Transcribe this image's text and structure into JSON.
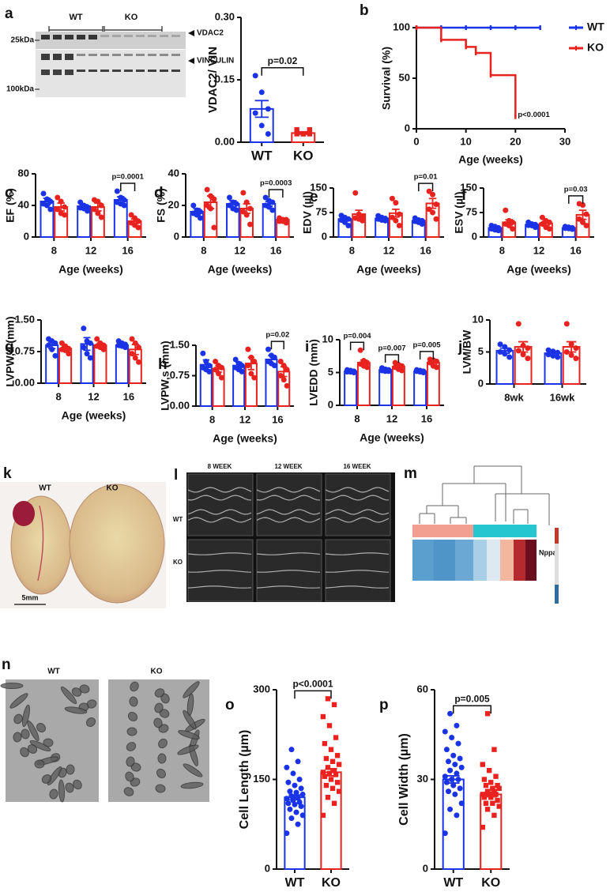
{
  "chart_data": [
    {
      "type": "bar",
      "ylabel": "VDAC2/ VIN",
      "categories": [
        "WT",
        "KO"
      ],
      "ylim": [
        0,
        0.3
      ],
      "yticks": [
        {
          "value": 0,
          "label": "0.00"
        },
        {
          "value": 0.15,
          "label": "0.15"
        },
        {
          "value": 0.3,
          "label": "0.30"
        }
      ],
      "values": [
        0.08,
        0.022
      ],
      "errors": [
        0.02,
        0.003
      ],
      "colors": [
        "#1a33e6",
        "#e8231f"
      ],
      "markers": [
        "circle",
        "square"
      ],
      "points": [
        [
          0.16,
          0.12,
          0.08,
          0.07,
          0.04,
          0.02
        ],
        [
          0.03,
          0.02,
          0.02,
          0.02,
          0.02,
          0.03
        ]
      ],
      "p_value": "p=0.02"
    },
    {
      "type": "line",
      "panel": "b",
      "step": true,
      "ylabel": "Survival (%)",
      "xlabel": "Age (weeks)",
      "xlim": [
        0,
        30
      ],
      "xticks": [
        0,
        10,
        20,
        30
      ],
      "ylim": [
        0,
        100
      ],
      "yticks": [
        0,
        50,
        100
      ],
      "legend": "right",
      "annotation": "p<0.0001",
      "series": [
        {
          "name": "WT",
          "color": "#1a33e6",
          "x": [
            0,
            5,
            10,
            15,
            20,
            25
          ],
          "values": [
            100,
            100,
            100,
            100,
            100,
            100
          ]
        },
        {
          "name": "KO",
          "color": "#e8231f",
          "x": [
            0,
            5,
            10,
            12,
            15,
            20
          ],
          "values": [
            100,
            88,
            81,
            75,
            53,
            12
          ]
        }
      ]
    },
    {
      "type": "bar",
      "panel": "c",
      "ylabel": "EF (%)",
      "xlabel": "Age (weeks)",
      "categories": [
        "8",
        "12",
        "16"
      ],
      "ylim": [
        0,
        80
      ],
      "yticks": [
        0,
        40,
        80
      ],
      "series": [
        {
          "color": "#1a33e6",
          "values": [
            45,
            39,
            47
          ],
          "errors": [
            4,
            2,
            4
          ],
          "points": [
            [
              55,
              48,
              45,
              42,
              40,
              35
            ],
            [
              44,
              40,
              38,
              37,
              36,
              33
            ],
            [
              58,
              50,
              47,
              44,
              42,
              40
            ]
          ]
        },
        {
          "color": "#e8231f",
          "values": [
            38,
            38,
            20
          ],
          "errors": [
            5,
            5,
            3
          ],
          "points": [
            [
              50,
              45,
              38,
              35,
              30,
              28
            ],
            [
              47,
              45,
              40,
              35,
              30,
              25
            ],
            [
              28,
              24,
              20,
              18,
              15,
              12
            ]
          ]
        }
      ],
      "p_values": [
        null,
        null,
        "p=0.0001"
      ]
    },
    {
      "type": "bar",
      "panel": "d",
      "ylabel": "FS (%)",
      "xlabel": "Age (weeks)",
      "categories": [
        "8",
        "12",
        "16"
      ],
      "ylim": [
        0,
        40
      ],
      "yticks": [
        0,
        20,
        40
      ],
      "series": [
        {
          "color": "#1a33e6",
          "values": [
            16,
            21,
            21
          ],
          "errors": [
            2,
            2,
            1.5
          ],
          "points": [
            [
              20,
              17,
              16,
              15,
              14,
              12
            ],
            [
              25,
              22,
              21,
              20,
              18,
              17
            ],
            [
              25,
              23,
              22,
              20,
              19,
              17
            ]
          ]
        },
        {
          "color": "#e8231f",
          "values": [
            22,
            18,
            11
          ],
          "errors": [
            4,
            3,
            1
          ],
          "points": [
            [
              30,
              26,
              24,
              20,
              18,
              6
            ],
            [
              28,
              22,
              18,
              16,
              14,
              8
            ],
            [
              12,
              11,
              11,
              10,
              10,
              9
            ]
          ]
        }
      ],
      "p_values": [
        null,
        null,
        "p=0.0003"
      ]
    },
    {
      "type": "bar",
      "panel": "e",
      "ylabel": "EDV (µl)",
      "xlabel": "Age (weeks)",
      "categories": [
        "8",
        "12",
        "16"
      ],
      "ylim": [
        0,
        150
      ],
      "yticks": [
        0,
        75,
        150
      ],
      "series": [
        {
          "color": "#1a33e6",
          "values": [
            55,
            57,
            50
          ],
          "errors": [
            6,
            4,
            4
          ],
          "points": [
            [
              66,
              60,
              55,
              52,
              45,
              35
            ],
            [
              65,
              60,
              57,
              55,
              52,
              50
            ],
            [
              58,
              52,
              50,
              48,
              45,
              40
            ]
          ]
        },
        {
          "color": "#e8231f",
          "values": [
            70,
            73,
            103
          ],
          "errors": [
            12,
            12,
            15
          ],
          "points": [
            [
              135,
              70,
              62,
              58,
              55,
              50
            ],
            [
              118,
              105,
              70,
              60,
              50,
              35
            ],
            [
              140,
              130,
              100,
              85,
              75,
              55
            ]
          ]
        }
      ],
      "p_values": [
        null,
        null,
        "p=0.01"
      ]
    },
    {
      "type": "bar",
      "panel": "f",
      "ylabel": "ESV (µl)",
      "xlabel": "Age (weeks)",
      "categories": [
        "8",
        "12",
        "16"
      ],
      "ylim": [
        0,
        150
      ],
      "yticks": [
        0,
        75,
        150
      ],
      "series": [
        {
          "color": "#1a33e6",
          "values": [
            28,
            38,
            28
          ],
          "errors": [
            4,
            3,
            2
          ],
          "points": [
            [
              35,
              32,
              28,
              25,
              22,
              20
            ],
            [
              45,
              40,
              38,
              36,
              35,
              30
            ],
            [
              32,
              30,
              28,
              27,
              26,
              24
            ]
          ]
        },
        {
          "color": "#e8231f",
          "values": [
            45,
            42,
            68
          ],
          "errors": [
            8,
            6,
            14
          ],
          "points": [
            [
              82,
              50,
              45,
              40,
              35,
              25
            ],
            [
              60,
              50,
              45,
              40,
              30,
              25
            ],
            [
              102,
              98,
              70,
              55,
              45,
              35
            ]
          ]
        }
      ],
      "p_values": [
        null,
        null,
        "p=0.03"
      ]
    },
    {
      "type": "bar",
      "panel": "g",
      "ylabel": "LVPW,d  (mm)",
      "xlabel": "Age (weeks)",
      "categories": [
        "8",
        "12",
        "16"
      ],
      "ylim": [
        0,
        1.5
      ],
      "yticks": [
        {
          "value": 0,
          "label": "0.00"
        },
        {
          "value": 0.75,
          "label": "0.75"
        },
        {
          "value": 1.5,
          "label": "1.50"
        }
      ],
      "series": [
        {
          "color": "#1a33e6",
          "values": [
            0.9,
            0.93,
            0.9
          ],
          "errors": [
            0.08,
            0.15,
            0.05
          ],
          "points": [
            [
              1.05,
              1.0,
              0.95,
              0.9,
              0.8,
              0.65
            ],
            [
              1.3,
              1.0,
              0.95,
              0.85,
              0.7,
              0.6
            ],
            [
              1.0,
              0.95,
              0.92,
              0.9,
              0.88,
              0.85
            ]
          ]
        },
        {
          "color": "#e8231f",
          "values": [
            0.82,
            0.9,
            0.8
          ],
          "errors": [
            0.05,
            0.05,
            0.12
          ],
          "points": [
            [
              0.95,
              0.88,
              0.82,
              0.8,
              0.78,
              0.7
            ],
            [
              1.05,
              0.95,
              0.9,
              0.88,
              0.85,
              0.8
            ],
            [
              1.05,
              0.95,
              0.85,
              0.7,
              0.6,
              0.5
            ]
          ]
        }
      ]
    },
    {
      "type": "bar",
      "panel": "h",
      "ylabel": "LVPW,s  (mm)",
      "xlabel": "Age (weeks)",
      "categories": [
        "8",
        "12",
        "16"
      ],
      "ylim": [
        0,
        1.5
      ],
      "yticks": [
        {
          "value": 0,
          "label": "0.00"
        },
        {
          "value": 0.75,
          "label": "0.75"
        },
        {
          "value": 1.5,
          "label": "1.50"
        }
      ],
      "series": [
        {
          "color": "#1a33e6",
          "values": [
            1.02,
            1.0,
            1.15
          ],
          "errors": [
            0.12,
            0.08,
            0.1
          ],
          "points": [
            [
              1.3,
              1.1,
              1.0,
              0.95,
              0.9,
              0.85
            ],
            [
              1.15,
              1.05,
              1.0,
              0.95,
              0.9,
              0.85
            ],
            [
              1.4,
              1.25,
              1.2,
              1.1,
              1.05,
              1.0
            ]
          ]
        },
        {
          "color": "#e8231f",
          "values": [
            0.92,
            1.05,
            0.85
          ],
          "errors": [
            0.08,
            0.15,
            0.12
          ],
          "points": [
            [
              1.1,
              1.0,
              0.95,
              0.9,
              0.8,
              0.7
            ],
            [
              1.4,
              1.2,
              1.1,
              1.0,
              0.8,
              0.7
            ],
            [
              1.1,
              1.0,
              0.9,
              0.75,
              0.65,
              0.5
            ]
          ]
        }
      ],
      "p_values": [
        null,
        null,
        "p=0.02"
      ]
    },
    {
      "type": "bar",
      "panel": "i",
      "ylabel": "LVEDD (mm)",
      "xlabel": "Age (weeks)",
      "categories": [
        "8",
        "12",
        "16"
      ],
      "ylim": [
        0,
        10
      ],
      "yticks": [
        0,
        5,
        10
      ],
      "series": [
        {
          "color": "#1a33e6",
          "values": [
            5.2,
            5.4,
            5.2
          ],
          "errors": [
            0.1,
            0.15,
            0.1
          ],
          "points": [
            [
              5.4,
              5.3,
              5.2,
              5.1,
              5.1,
              5.0
            ],
            [
              5.7,
              5.5,
              5.4,
              5.3,
              5.2,
              5.2
            ],
            [
              5.4,
              5.3,
              5.2,
              5.2,
              5.1,
              5.0
            ]
          ]
        },
        {
          "color": "#e8231f",
          "values": [
            6.5,
            5.9,
            6.5
          ],
          "errors": [
            0.4,
            0.3,
            0.3
          ],
          "points": [
            [
              8.4,
              6.8,
              6.5,
              6.3,
              6.0,
              5.8
            ],
            [
              6.5,
              6.2,
              6.0,
              5.8,
              5.5,
              5.3
            ],
            [
              7.0,
              6.9,
              6.7,
              6.5,
              6.0,
              5.8
            ]
          ]
        }
      ],
      "p_values": [
        "p=0.004",
        "p=0.007",
        "p=0.005"
      ]
    },
    {
      "type": "bar",
      "panel": "j",
      "ylabel": "LVM/BW",
      "categories": [
        "8wk",
        "16wk"
      ],
      "ylim": [
        0,
        10
      ],
      "yticks": [
        0,
        5,
        10
      ],
      "series": [
        {
          "color": "#1a33e6",
          "values": [
            5.2,
            4.8
          ],
          "errors": [
            0.4,
            0.3
          ],
          "points": [
            [
              6.2,
              5.8,
              5.3,
              5.0,
              4.7,
              4.2
            ],
            [
              5.3,
              5.1,
              4.9,
              4.6,
              4.4,
              4.2
            ]
          ]
        },
        {
          "color": "#e8231f",
          "values": [
            5.8,
            5.8
          ],
          "errors": [
            0.8,
            0.8
          ],
          "points": [
            [
              9.4,
              6.0,
              5.6,
              5.2,
              4.6,
              4.0
            ],
            [
              9.4,
              6.2,
              5.6,
              5.0,
              4.5,
              4.0
            ]
          ]
        }
      ]
    },
    {
      "type": "bar",
      "panel": "o",
      "ylabel": "Cell Length (µm)",
      "categories": [
        "WT",
        "KO"
      ],
      "ylim": [
        0,
        300
      ],
      "yticks": [
        0,
        150,
        300
      ],
      "values": [
        120,
        162
      ],
      "errors": [
        4,
        6
      ],
      "colors": [
        "#1a33e6",
        "#e8231f"
      ],
      "markers": [
        "circle",
        "square"
      ],
      "points": [
        [
          60,
          75,
          85,
          90,
          95,
          100,
          105,
          108,
          110,
          112,
          115,
          118,
          120,
          122,
          125,
          128,
          130,
          135,
          140,
          145,
          150,
          160,
          170,
          180,
          200
        ],
        [
          90,
          110,
          120,
          130,
          135,
          140,
          145,
          150,
          155,
          158,
          160,
          162,
          165,
          170,
          175,
          180,
          185,
          190,
          200,
          210,
          220,
          240,
          255,
          275,
          285
        ]
      ],
      "p_value": "p<0.0001"
    },
    {
      "type": "bar",
      "panel": "p",
      "ylabel": "Cell Width (µm)",
      "categories": [
        "WT",
        "KO"
      ],
      "ylim": [
        0,
        60
      ],
      "yticks": [
        0,
        30,
        60
      ],
      "values": [
        30,
        25
      ],
      "errors": [
        1.2,
        0.8
      ],
      "colors": [
        "#1a33e6",
        "#e8231f"
      ],
      "markers": [
        "circle",
        "square"
      ],
      "points": [
        [
          12,
          18,
          20,
          22,
          25,
          26,
          27,
          28,
          29,
          30,
          30,
          31,
          32,
          33,
          34,
          35,
          36,
          37,
          38,
          40,
          42,
          44,
          46,
          48,
          52
        ],
        [
          14,
          18,
          20,
          21,
          22,
          22,
          23,
          24,
          24,
          25,
          25,
          25,
          26,
          26,
          27,
          27,
          28,
          28,
          29,
          30,
          31,
          33,
          35,
          40,
          52
        ]
      ],
      "p_value": "p=0.005"
    }
  ],
  "figure": {
    "blot": {
      "panel": "a",
      "groups": [
        "WT",
        "KO"
      ],
      "bands": [
        "VDAC2",
        "VINCULIN"
      ],
      "markers": [
        "25kDa",
        "100kDa"
      ]
    },
    "heart": {
      "panel": "k",
      "labels": [
        "WT",
        "KO"
      ],
      "scale_bar": "5mm"
    },
    "echo": {
      "panel": "l",
      "columns": [
        "8 WEEK",
        "12 WEEK",
        "16 WEEK"
      ],
      "rows": [
        "WT",
        "KO"
      ]
    },
    "heatmap": {
      "panel": "m",
      "gene": "Nppa"
    },
    "cells": {
      "panel": "n",
      "labels": [
        "WT",
        "KO"
      ]
    }
  }
}
